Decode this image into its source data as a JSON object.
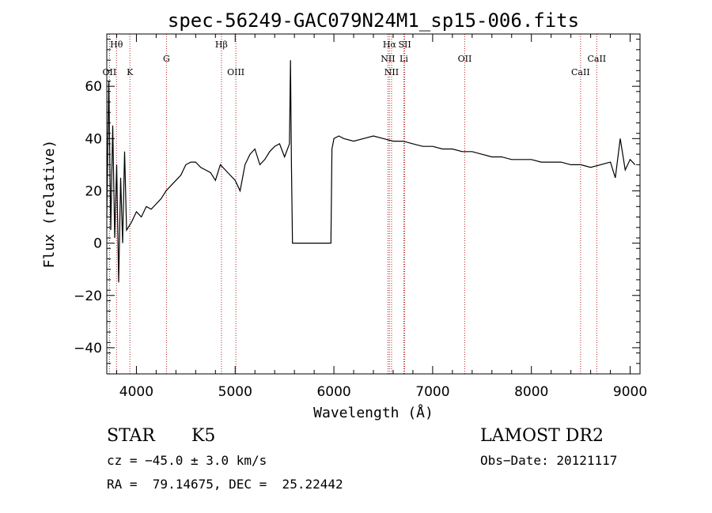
{
  "chart_data": {
    "type": "line",
    "title": "spec-56249-GAC079N24M1_sp15-006.fits",
    "xlabel": "Wavelength (Å)",
    "ylabel": "Flux (relative)",
    "xlim": [
      3700,
      9100
    ],
    "ylim": [
      -50,
      80
    ],
    "x_ticks": [
      4000,
      5000,
      6000,
      7000,
      8000,
      9000
    ],
    "y_ticks": [
      -40,
      -20,
      0,
      20,
      40,
      60
    ],
    "x_tick_labels": [
      "4000",
      "5000",
      "6000",
      "7000",
      "8000",
      "9000"
    ],
    "y_tick_labels": [
      "−40",
      "−20",
      "0",
      "20",
      "40",
      "60"
    ],
    "grid": false,
    "line_color": "#000000",
    "marker_color": "#b22222",
    "series": [
      {
        "x": [
          3700,
          3720,
          3740,
          3760,
          3780,
          3800,
          3820,
          3840,
          3860,
          3880,
          3900,
          3950,
          4000,
          4050,
          4100,
          4150,
          4200,
          4250,
          4300,
          4350,
          4400,
          4450,
          4500,
          4550,
          4600,
          4650,
          4700,
          4750,
          4800,
          4850,
          4900,
          4950,
          5000,
          5050,
          5100,
          5150,
          5200,
          5250,
          5300,
          5350,
          5400,
          5450,
          5500,
          5550,
          5560,
          5570,
          5580,
          5590,
          5600,
          5700,
          5800,
          5900,
          5970,
          5980,
          6000,
          6050,
          6100,
          6200,
          6300,
          6400,
          6500,
          6600,
          6700,
          6800,
          6900,
          7000,
          7100,
          7200,
          7300,
          7400,
          7500,
          7600,
          7700,
          7800,
          7900,
          8000,
          8100,
          8200,
          8300,
          8400,
          8500,
          8600,
          8700,
          8800,
          8850,
          8900,
          8950,
          9000,
          9050
        ],
        "y": [
          10,
          62,
          5,
          45,
          2,
          30,
          -15,
          25,
          0,
          35,
          5,
          8,
          12,
          10,
          14,
          13,
          15,
          17,
          20,
          22,
          24,
          26,
          30,
          31,
          31,
          29,
          28,
          27,
          24,
          30,
          28,
          26,
          24,
          20,
          30,
          34,
          36,
          30,
          32,
          35,
          37,
          38,
          33,
          38,
          70,
          30,
          0,
          0,
          0,
          0,
          0,
          0,
          0,
          36,
          40,
          41,
          40,
          39,
          40,
          41,
          40,
          39,
          39,
          38,
          37,
          37,
          36,
          36,
          35,
          35,
          34,
          33,
          33,
          32,
          32,
          32,
          31,
          31,
          31,
          30,
          30,
          29,
          30,
          31,
          25,
          40,
          28,
          32,
          30
        ]
      }
    ],
    "spectral_lines": [
      {
        "label": "Hθ",
        "x": 3798,
        "row": 0
      },
      {
        "label": "OII",
        "x": 3727,
        "row": 2
      },
      {
        "label": "K",
        "x": 3934,
        "row": 2
      },
      {
        "label": "G",
        "x": 4304,
        "row": 1
      },
      {
        "label": "Hβ",
        "x": 4861,
        "row": 0
      },
      {
        "label": "OIII",
        "x": 5007,
        "row": 2
      },
      {
        "label": "Hα",
        "x": 6563,
        "row": 0
      },
      {
        "label": "NII",
        "x": 6548,
        "row": 1
      },
      {
        "label": "NII",
        "x": 6584,
        "row": 2
      },
      {
        "label": "SII",
        "x": 6717,
        "row": 0
      },
      {
        "label": "Li",
        "x": 6708,
        "row": 1
      },
      {
        "label": "OII",
        "x": 7325,
        "row": 1
      },
      {
        "label": "CaII",
        "x": 8498,
        "row": 2
      },
      {
        "label": "CaII",
        "x": 8662,
        "row": 1
      }
    ]
  },
  "info": {
    "class": "STAR",
    "subclass": "K5",
    "survey": "LAMOST DR2",
    "velocity": "cz = −45.0 ± 3.0 km/s",
    "obs_date": "Obs−Date: 20121117",
    "coords": "RA =  79.14675, DEC =  25.22442"
  }
}
